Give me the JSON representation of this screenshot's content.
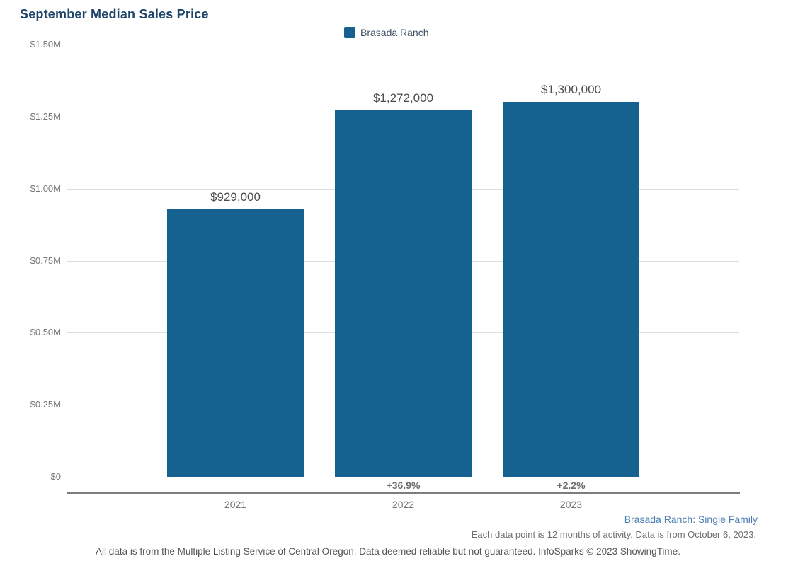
{
  "title": "September Median Sales Price",
  "legend": {
    "label": "Brasada Ranch",
    "swatch_color": "#15618f"
  },
  "chart_data": {
    "type": "bar",
    "title": "September Median Sales Price",
    "series_name": "Brasada Ranch",
    "categories": [
      "2021",
      "2022",
      "2023"
    ],
    "values": [
      929000,
      1272000,
      1300000
    ],
    "value_labels": [
      "$929,000",
      "$1,272,000",
      "$1,300,000"
    ],
    "pct_change_labels": [
      "",
      "+36.9%",
      "+2.2%"
    ],
    "xlabel": "",
    "ylabel": "",
    "ylim": [
      0,
      1500000
    ],
    "yticks": [
      0,
      250000,
      500000,
      750000,
      1000000,
      1250000,
      1500000
    ],
    "ytick_labels": [
      "$0",
      "$0.25M",
      "$0.50M",
      "$0.75M",
      "$1.00M",
      "$1.25M",
      "$1.50M"
    ],
    "grid": true,
    "legend_position": "top-center",
    "bar_color": "#15618f"
  },
  "footer": {
    "series_note": "Brasada Ranch: Single Family",
    "data_note": "Each data point is 12 months of activity. Data is from October 6, 2023.",
    "disclaimer": "All data is from the Multiple Listing Service of Central Oregon. Data deemed reliable but not guaranteed. InfoSparks © 2023 ShowingTime."
  }
}
